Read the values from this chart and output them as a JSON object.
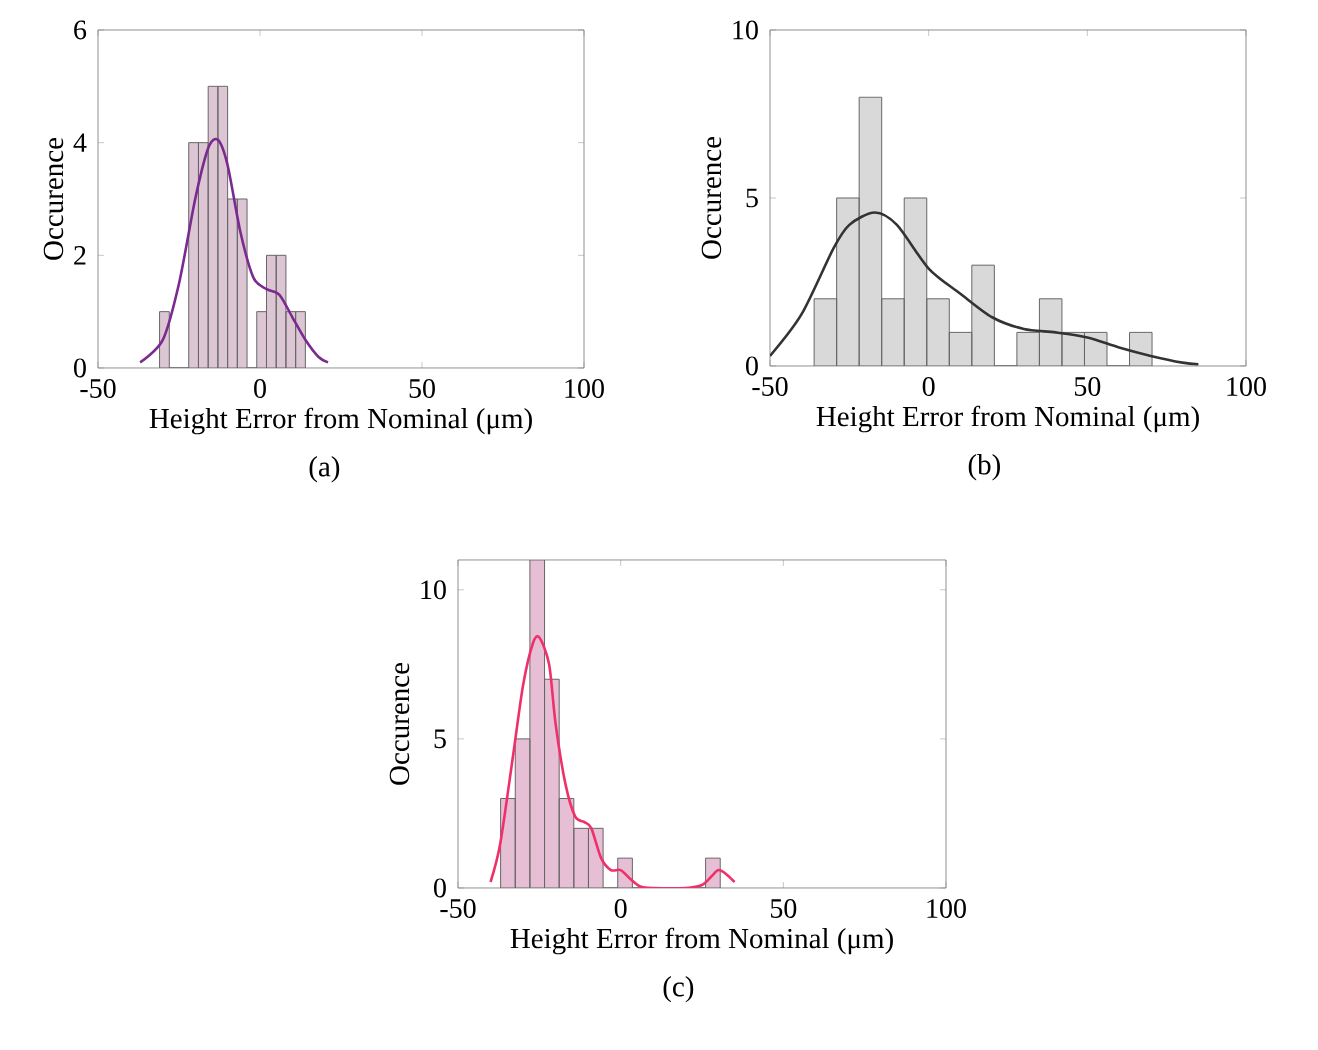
{
  "chart_data": [
    {
      "type": "histogram",
      "xlabel": "Height Error from Nominal (μm)",
      "ylabel": "Occurence",
      "xlim": [
        -50,
        100
      ],
      "xticks": [
        -50,
        0,
        50,
        100
      ],
      "ylim": [
        0,
        6
      ],
      "yticks": [
        0,
        2,
        4,
        6
      ],
      "annotations": [
        "(a)"
      ],
      "series": [
        {
          "type": "histogram",
          "color": "#dcc6d3",
          "bins": [
            -31,
            -28,
            -25,
            -22,
            -19,
            -16,
            -13,
            -10,
            -7,
            -4,
            -1,
            2,
            5,
            8,
            11,
            14
          ],
          "values": [
            1,
            0,
            0,
            4,
            4,
            5,
            5,
            3,
            3,
            0,
            1,
            2,
            2,
            1,
            1
          ]
        },
        {
          "type": "line",
          "color": "#7b2a8f",
          "x": [
            -37,
            -30,
            -25,
            -20,
            -16,
            -13,
            -10,
            -6,
            -2,
            2,
            6,
            10,
            14,
            18,
            21
          ],
          "values": [
            0.1,
            0.5,
            1.5,
            3.0,
            3.9,
            4.05,
            3.6,
            2.4,
            1.6,
            1.4,
            1.3,
            0.9,
            0.5,
            0.2,
            0.1
          ]
        }
      ]
    },
    {
      "type": "histogram",
      "xlabel": "Height Error from Nominal (μm)",
      "ylabel": "Occurence",
      "xlim": [
        -50,
        100
      ],
      "xticks": [
        -50,
        0,
        50,
        100
      ],
      "ylim": [
        0,
        10
      ],
      "yticks": [
        0,
        5,
        10
      ],
      "annotations": [
        "(b)"
      ],
      "series": [
        {
          "type": "histogram",
          "color": "#d9d9d9",
          "bins": [
            -36.1,
            -29,
            -21.9,
            -14.8,
            -7.7,
            -0.6,
            6.5,
            13.6,
            20.7,
            27.8,
            34.9,
            42,
            49.1,
            56.2,
            63.3,
            70.4
          ],
          "values": [
            2,
            5,
            8,
            2,
            5,
            2,
            1,
            3,
            0,
            1,
            2,
            1,
            1,
            0,
            1
          ]
        },
        {
          "type": "line",
          "color": "#333333",
          "x": [
            -50,
            -40,
            -30,
            -25,
            -17,
            -10,
            0,
            10,
            20,
            30,
            40,
            50,
            60,
            70,
            80,
            85
          ],
          "values": [
            0.3,
            1.55,
            3.5,
            4.2,
            4.57,
            4.2,
            2.9,
            2.15,
            1.45,
            1.1,
            1.0,
            0.85,
            0.55,
            0.3,
            0.1,
            0.05
          ]
        }
      ]
    },
    {
      "type": "histogram",
      "xlabel": "Height Error from Nominal (μm)",
      "ylabel": "Occurence",
      "xlim": [
        -50,
        100
      ],
      "xticks": [
        -50,
        0,
        50,
        100
      ],
      "ylim": [
        0,
        11
      ],
      "yticks": [
        0,
        5,
        10
      ],
      "annotations": [
        "(c)"
      ],
      "series": [
        {
          "type": "histogram",
          "color": "#e6bfd4",
          "bins": [
            -36.9,
            -32.4,
            -27.9,
            -23.4,
            -18.9,
            -14.4,
            -9.9,
            -5.4,
            -0.9,
            3.6,
            8.1,
            12.6,
            17.1,
            21.6,
            26.1,
            30.6
          ],
          "values": [
            3,
            5,
            11,
            7,
            3,
            2,
            2,
            0,
            1,
            0,
            0,
            0,
            0,
            0,
            1
          ]
        },
        {
          "type": "line",
          "color": "#f0306a",
          "x": [
            -40,
            -37,
            -33,
            -30,
            -27,
            -25,
            -22,
            -20,
            -17,
            -14,
            -11,
            -9,
            -6,
            -3,
            0,
            3,
            6,
            10,
            20,
            25,
            28,
            30,
            32,
            35
          ],
          "values": [
            0.2,
            1.5,
            4.5,
            6.8,
            8.2,
            8.4,
            7.5,
            5.5,
            3.5,
            2.4,
            2.2,
            2.0,
            1.0,
            0.6,
            0.6,
            0.3,
            0.05,
            0,
            0,
            0.1,
            0.4,
            0.6,
            0.5,
            0.2
          ]
        }
      ]
    }
  ]
}
